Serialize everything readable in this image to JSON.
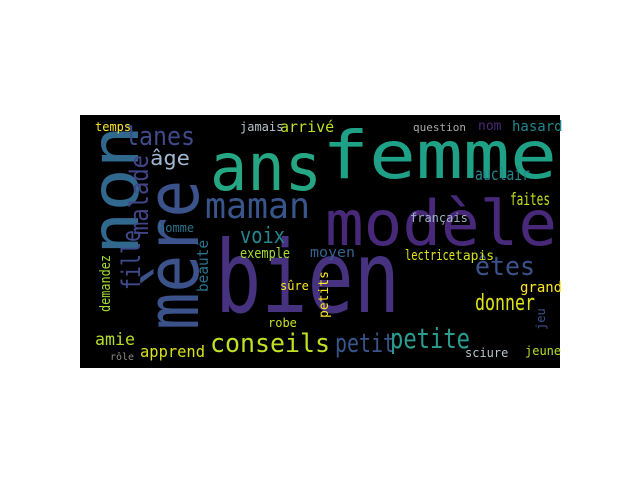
{
  "words": [
    "ans",
    "femme",
    "modèle",
    "bien",
    "mère",
    "non",
    "malade",
    "fille",
    "demandez",
    "beauté",
    "petits",
    "jeu",
    "lanes",
    "âge",
    "maman",
    "voix",
    "conseils",
    "petit",
    "petite",
    "donner",
    "êtes",
    "faites",
    "auclair",
    "amie",
    "apprend",
    "exemple",
    "moyen",
    "lectrice",
    "tapis",
    "grand",
    "jeune",
    "français",
    "arrivé",
    "jamais",
    "temps",
    "question",
    "nom",
    "hasard",
    "homme",
    "robe",
    "sûre",
    "sciure",
    "rôle"
  ]
}
